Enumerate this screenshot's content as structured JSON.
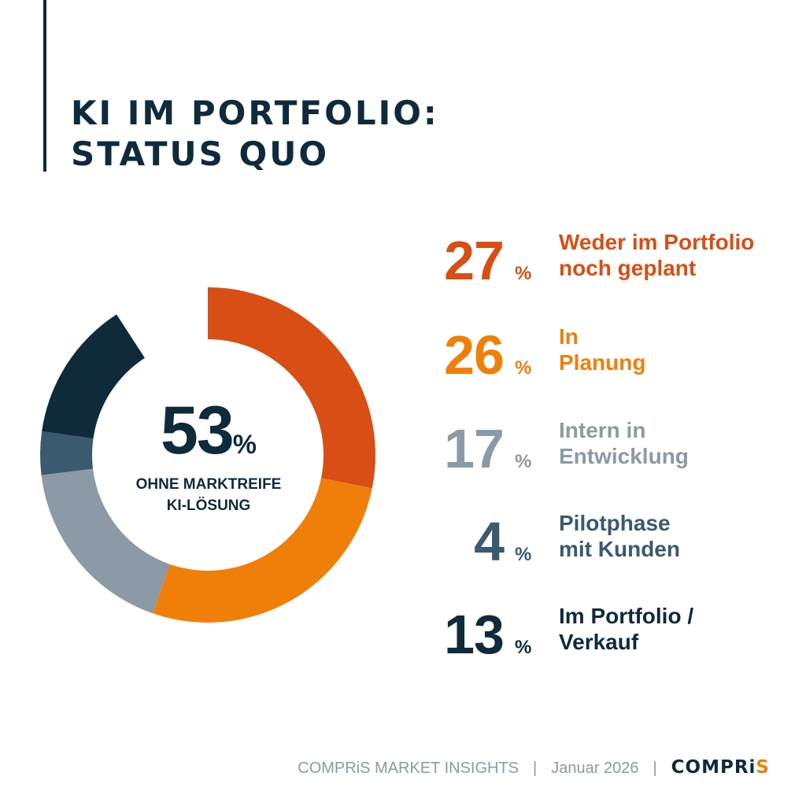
{
  "title_lines": [
    "KI IM PORTFOLIO:",
    "STATUS QUO"
  ],
  "center": {
    "value": "53",
    "unit": "%",
    "caption_lines": [
      "OHNE MARKTREIFE",
      "KI-LÖSUNG"
    ]
  },
  "chart_data": {
    "type": "pie",
    "style": "donut",
    "title": "KI IM PORTFOLIO: STATUS QUO",
    "unit": "%",
    "gap_degrees": 33,
    "slices": [
      {
        "value": 27,
        "value_label": "27",
        "label_lines": [
          "Weder im Portfolio",
          "noch geplant"
        ],
        "color": "#d84e14"
      },
      {
        "value": 26,
        "value_label": "26",
        "label_lines": [
          "In",
          "Planung"
        ],
        "color": "#f07f0a"
      },
      {
        "value": 17,
        "value_label": "17",
        "label_lines": [
          "Intern in",
          "Entwicklung"
        ],
        "color": "#8b9aa6"
      },
      {
        "value": 4,
        "value_label": "4",
        "label_lines": [
          "Pilotphase",
          "mit Kunden"
        ],
        "color": "#3a5a6d"
      },
      {
        "value": 13,
        "value_label": "13",
        "label_lines": [
          "Im Portfolio /",
          "Verkauf"
        ],
        "color": "#0e2a3b"
      }
    ],
    "legend_position": "right"
  },
  "footer": {
    "source": "COMPRiS MARKET INSIGHTS",
    "separator": "|",
    "date": "Januar 2026",
    "brand_main": "COMPRi",
    "brand_accent": "S"
  }
}
